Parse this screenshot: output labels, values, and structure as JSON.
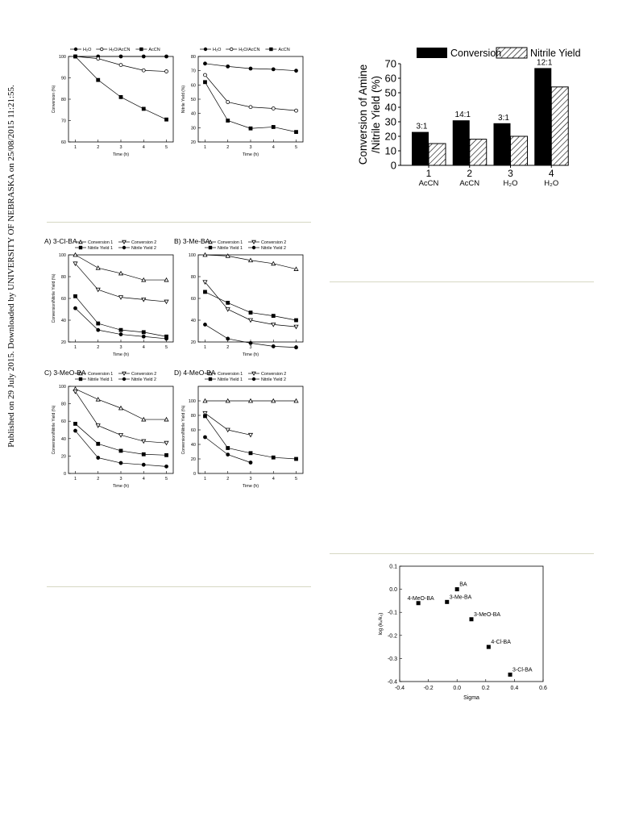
{
  "sidebar_note": "Published on 29 July 2015. Downloaded by UNIVERSITY OF NEBRASKA on 25/08/2015 11:21:55.",
  "chart_data": [
    {
      "id": "conv-solvent",
      "type": "line",
      "legend": [
        "H₂O",
        "H₂O/AcCN",
        "AcCN"
      ],
      "x": [
        1,
        2,
        3,
        4,
        5
      ],
      "xlabel": "Time (h)",
      "ylabel": "Conversion (%)",
      "ylim": [
        60,
        100
      ],
      "yticks": [
        60,
        70,
        80,
        90,
        100
      ],
      "series": [
        {
          "name": "H₂O",
          "marker": "circle-filled",
          "values": [
            100,
            100,
            100,
            100,
            100
          ]
        },
        {
          "name": "H₂O/AcCN",
          "marker": "circle-open",
          "values": [
            100,
            99,
            96,
            93.5,
            93
          ]
        },
        {
          "name": "AcCN",
          "marker": "square-filled",
          "values": [
            100,
            89,
            81,
            75.5,
            70.5
          ]
        }
      ]
    },
    {
      "id": "yield-solvent",
      "type": "line",
      "legend": [
        "H₂O",
        "H₂O/AcCN",
        "AcCN"
      ],
      "x": [
        1,
        2,
        3,
        4,
        5
      ],
      "xlabel": "Time (h)",
      "ylabel": "Nitrile Yield (%)",
      "ylim": [
        20,
        80
      ],
      "yticks": [
        20,
        30,
        40,
        50,
        60,
        70,
        80
      ],
      "series": [
        {
          "name": "H₂O",
          "marker": "circle-filled",
          "values": [
            75,
            73,
            71.5,
            71,
            70
          ]
        },
        {
          "name": "H₂O/AcCN",
          "marker": "circle-open",
          "values": [
            67,
            48,
            44.5,
            43.5,
            42
          ]
        },
        {
          "name": "AcCN",
          "marker": "square-filled",
          "values": [
            62,
            35,
            29.5,
            30.5,
            27
          ]
        }
      ]
    },
    {
      "id": "bar-solvent",
      "type": "bar",
      "legend": [
        "Conversion",
        "Nitrile Yield"
      ],
      "categories": [
        "1",
        "2",
        "3",
        "4"
      ],
      "sublabels": [
        "AcCN",
        "AcCN",
        "H₂O",
        "H₂O"
      ],
      "ratio_labels": [
        "3:1",
        "14:1",
        "3:1",
        "12:1"
      ],
      "ylabel_lines": [
        "Conversion of Amine",
        "/Nitrile Yield (%)"
      ],
      "ylim": [
        0,
        70
      ],
      "yticks": [
        0,
        10,
        20,
        30,
        40,
        50,
        60,
        70
      ],
      "series": [
        {
          "name": "Conversion",
          "values": [
            23,
            31,
            29,
            67
          ]
        },
        {
          "name": "Nitrile Yield",
          "values": [
            15,
            18,
            20,
            54
          ]
        }
      ]
    },
    {
      "id": "panel-a",
      "type": "line",
      "title": "A) 3-Cl-BA",
      "legend": [
        "Conversion 1",
        "Conversion 2",
        "Nitrile Yield 1",
        "Nitrile Yield 2"
      ],
      "x": [
        1,
        2,
        3,
        4,
        5
      ],
      "xlabel": "Time (h)",
      "ylabel": "Conversion/Nitrile Yield (%)",
      "ylim": [
        20,
        100
      ],
      "yticks": [
        20,
        40,
        60,
        80,
        100
      ],
      "series": [
        {
          "name": "Conversion 1",
          "marker": "triangle-up-open",
          "values": [
            100,
            88,
            83,
            77,
            77
          ]
        },
        {
          "name": "Conversion 2",
          "marker": "triangle-down-open",
          "values": [
            92,
            68,
            61,
            59,
            57
          ]
        },
        {
          "name": "Nitrile Yield 1",
          "marker": "square-filled",
          "values": [
            62,
            37,
            31,
            29,
            25
          ]
        },
        {
          "name": "Nitrile Yield 2",
          "marker": "circle-filled",
          "values": [
            51,
            31,
            27,
            25,
            23
          ]
        }
      ]
    },
    {
      "id": "panel-b",
      "type": "line",
      "title": "B) 3-Me-BA",
      "legend": [
        "Conversion 1",
        "Conversion 2",
        "Nitrile Yield 1",
        "Nitrile Yield 2"
      ],
      "x": [
        1,
        2,
        3,
        4,
        5
      ],
      "xlabel": "Time (h)",
      "ylabel": "",
      "ylim": [
        20,
        100
      ],
      "yticks": [
        20,
        40,
        60,
        80,
        100
      ],
      "series": [
        {
          "name": "Conversion 1",
          "marker": "triangle-up-open",
          "values": [
            100,
            99,
            95,
            92,
            87
          ]
        },
        {
          "name": "Conversion 2",
          "marker": "triangle-down-open",
          "values": [
            75,
            50,
            40,
            36,
            34
          ]
        },
        {
          "name": "Nitrile Yield 1",
          "marker": "square-filled",
          "values": [
            66,
            56,
            47,
            44,
            40
          ]
        },
        {
          "name": "Nitrile Yield 2",
          "marker": "circle-filled",
          "values": [
            36,
            23,
            19,
            16,
            15
          ]
        }
      ]
    },
    {
      "id": "panel-c",
      "type": "line",
      "title": "C) 3-MeO-BA",
      "legend": [
        "Conversion 1",
        "Conversion 2",
        "Nitrile Yield 1",
        "Nitrile Yield 2"
      ],
      "x": [
        1,
        2,
        3,
        4,
        5
      ],
      "xlabel": "Time (h)",
      "ylabel": "Conversion/Nitrile Yield (%)",
      "ylim": [
        0,
        100
      ],
      "yticks": [
        0,
        20,
        40,
        60,
        80,
        100
      ],
      "series": [
        {
          "name": "Conversion 1",
          "marker": "triangle-up-open",
          "values": [
            97,
            85,
            75,
            62,
            62
          ]
        },
        {
          "name": "Conversion 2",
          "marker": "triangle-down-open",
          "values": [
            94,
            55,
            44,
            37,
            35
          ]
        },
        {
          "name": "Nitrile Yield 1",
          "marker": "square-filled",
          "values": [
            57,
            34,
            26,
            22,
            21
          ]
        },
        {
          "name": "Nitrile Yield 2",
          "marker": "circle-filled",
          "values": [
            49,
            18,
            12,
            10,
            8
          ]
        }
      ]
    },
    {
      "id": "panel-d",
      "type": "line",
      "title": "D) 4-MeO-BA",
      "legend": [
        "Conversion 1",
        "Conversion 2",
        "Nitrile Yield 1",
        "Nitrile Yield 2"
      ],
      "x": [
        1,
        2,
        3,
        4,
        5
      ],
      "xlabel": "Time (h)",
      "ylabel": "Conversion/Nitrile Yield (%)",
      "ylim": [
        0,
        120
      ],
      "yticks": [
        0,
        20,
        40,
        60,
        80,
        100
      ],
      "series": [
        {
          "name": "Conversion 1",
          "marker": "triangle-up-open",
          "x": [
            1,
            2,
            3,
            4,
            5
          ],
          "values": [
            100,
            100,
            100,
            100,
            100
          ]
        },
        {
          "name": "Conversion 2",
          "marker": "triangle-down-open",
          "x": [
            1,
            2,
            3
          ],
          "values": [
            83,
            60,
            53
          ]
        },
        {
          "name": "Nitrile Yield 1",
          "marker": "square-filled",
          "x": [
            1,
            2,
            3,
            4,
            5
          ],
          "values": [
            79,
            35,
            28,
            22,
            20
          ]
        },
        {
          "name": "Nitrile Yield 2",
          "marker": "circle-filled",
          "x": [
            1,
            2,
            3
          ],
          "values": [
            50,
            26,
            15
          ]
        }
      ]
    },
    {
      "id": "hammett",
      "type": "scatter",
      "xlabel": "Sigma",
      "ylabel": "log (kₓ/k₀)",
      "xlim": [
        -0.4,
        0.6
      ],
      "ylim": [
        -0.4,
        0.1
      ],
      "xticks": [
        -0.4,
        -0.2,
        0.0,
        0.2,
        0.4,
        0.6
      ],
      "yticks": [
        -0.4,
        -0.3,
        -0.2,
        -0.1,
        0.0,
        0.1
      ],
      "points": [
        {
          "label": "BA",
          "x": 0.0,
          "y": 0.0
        },
        {
          "label": "4-MeO-BA",
          "x": -0.27,
          "y": -0.06
        },
        {
          "label": "3-Me-BA",
          "x": -0.07,
          "y": -0.055
        },
        {
          "label": "3-MeO-BA",
          "x": 0.1,
          "y": -0.13
        },
        {
          "label": "4-Cl-BA",
          "x": 0.22,
          "y": -0.25
        },
        {
          "label": "3-Cl-BA",
          "x": 0.37,
          "y": -0.37
        }
      ]
    }
  ]
}
